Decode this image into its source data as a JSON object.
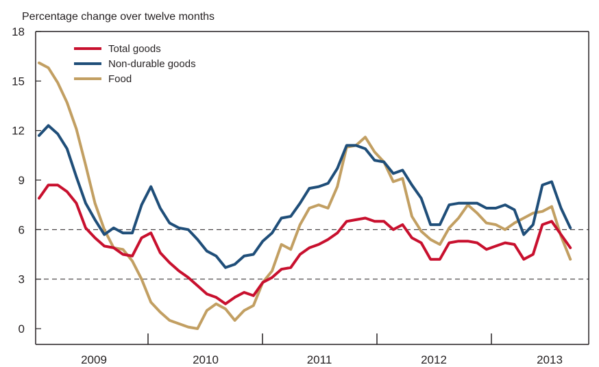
{
  "chart_data": {
    "type": "line",
    "title": "",
    "ylabel": "Percentage change over twelve months",
    "xlabel": "",
    "ylim": [
      -1,
      18
    ],
    "y_ticks": [
      0,
      3,
      6,
      9,
      12,
      15,
      18
    ],
    "dashed_reference_lines": [
      3,
      6
    ],
    "x_tick_labels": [
      "2009",
      "2010",
      "2011",
      "2012",
      "2013"
    ],
    "x_start": "2009-01",
    "legend_placement": "top-left",
    "series": [
      {
        "name": "Total goods",
        "color": "#c8102e",
        "values": [
          7.9,
          8.7,
          8.7,
          8.3,
          7.6,
          6.1,
          5.5,
          5.0,
          4.9,
          4.5,
          4.4,
          5.5,
          5.8,
          4.6,
          4.0,
          3.5,
          3.1,
          2.6,
          2.1,
          1.9,
          1.5,
          1.9,
          2.2,
          2.0,
          2.8,
          3.1,
          3.6,
          3.7,
          4.5,
          4.9,
          5.1,
          5.4,
          5.8,
          6.5,
          6.6,
          6.7,
          6.5,
          6.5,
          6.0,
          6.3,
          5.5,
          5.2,
          4.2,
          4.2,
          5.2,
          5.3,
          5.3,
          5.2,
          4.8,
          5.0,
          5.2,
          5.1,
          4.2,
          4.5,
          6.3,
          6.5,
          5.7,
          4.9
        ]
      },
      {
        "name": "Non-durable goods",
        "color": "#1f4e79",
        "values": [
          11.7,
          12.3,
          11.8,
          10.9,
          9.2,
          7.6,
          6.6,
          5.7,
          6.1,
          5.8,
          5.8,
          7.5,
          8.6,
          7.3,
          6.4,
          6.1,
          6.0,
          5.4,
          4.7,
          4.4,
          3.7,
          3.9,
          4.4,
          4.5,
          5.3,
          5.8,
          6.7,
          6.8,
          7.6,
          8.5,
          8.6,
          8.8,
          9.7,
          11.1,
          11.1,
          10.9,
          10.2,
          10.1,
          9.4,
          9.6,
          8.7,
          7.9,
          6.3,
          6.3,
          7.5,
          7.6,
          7.6,
          7.6,
          7.3,
          7.3,
          7.5,
          7.2,
          5.7,
          6.3,
          8.7,
          8.9,
          7.3,
          6.1
        ]
      },
      {
        "name": "Food",
        "color": "#c29f62",
        "values": [
          16.1,
          15.8,
          14.9,
          13.7,
          12.1,
          9.9,
          7.6,
          6.0,
          4.9,
          4.8,
          4.1,
          3.0,
          1.6,
          1.0,
          0.5,
          0.3,
          0.1,
          0.0,
          1.1,
          1.5,
          1.2,
          0.5,
          1.1,
          1.4,
          2.8,
          3.5,
          5.1,
          4.8,
          6.3,
          7.3,
          7.5,
          7.3,
          8.6,
          11.0,
          11.1,
          11.6,
          10.7,
          10.1,
          8.9,
          9.1,
          6.8,
          5.9,
          5.4,
          5.1,
          6.1,
          6.7,
          7.5,
          7.0,
          6.4,
          6.3,
          6.0,
          6.4,
          6.7,
          7.0,
          7.1,
          7.4,
          5.6,
          4.2
        ]
      }
    ]
  }
}
